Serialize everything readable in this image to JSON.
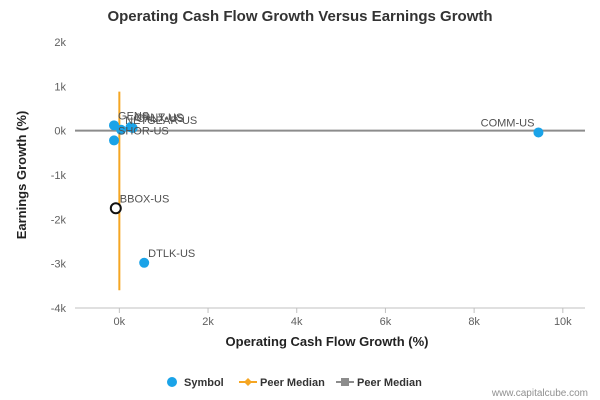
{
  "chart_data": {
    "type": "scatter",
    "title": "Operating Cash Flow Growth Versus Earnings Growth",
    "xlabel": "Operating Cash Flow Growth (%)",
    "ylabel": "Earnings Growth (%)",
    "xlim": [
      -1000,
      10500
    ],
    "ylim": [
      -4000,
      2000
    ],
    "x_ticks": [
      0,
      2000,
      4000,
      6000,
      8000,
      10000
    ],
    "x_tick_labels": [
      "0k",
      "2k",
      "4k",
      "6k",
      "8k",
      "10k"
    ],
    "y_ticks": [
      2000,
      1000,
      0,
      -1000,
      -2000,
      -3000,
      -4000
    ],
    "y_tick_labels": [
      "2k",
      "1k",
      "0k",
      "-1k",
      "-2k",
      "-3k",
      "-4k"
    ],
    "grid": false,
    "legend_position": "bottom",
    "points": [
      {
        "label": "GENS",
        "x": -120,
        "y": 120
      },
      {
        "label": "CRNT-US",
        "x": 250,
        "y": 80
      },
      {
        "label": "NETGEAR-US",
        "x": 40,
        "y": 20
      },
      {
        "label": "CALX-US",
        "x": 300,
        "y": 60
      },
      {
        "label": "SHOR-US",
        "x": -120,
        "y": -220
      },
      {
        "label": "COMM-US",
        "x": 9450,
        "y": -40
      },
      {
        "label": "DTLK-US",
        "x": 560,
        "y": -2980
      }
    ],
    "highlight_point": {
      "label": "BBOX-US",
      "x": -80,
      "y": -1750
    },
    "peer_median_x": 0,
    "peer_median_x_range": [
      -3600,
      880
    ],
    "peer_median_y": 0,
    "colors": {
      "symbol": "#1aa3e8",
      "peer_median_x": "#f5a623",
      "peer_median_y": "#8c8c8c"
    },
    "legend": [
      {
        "name": "Symbol",
        "color": "#1aa3e8",
        "marker": "circle"
      },
      {
        "name": "Peer Median",
        "color": "#f5a623",
        "marker": "line-diamond"
      },
      {
        "name": "Peer Median",
        "color": "#8c8c8c",
        "marker": "line-square"
      }
    ]
  },
  "credit": "www.capitalcube.com"
}
